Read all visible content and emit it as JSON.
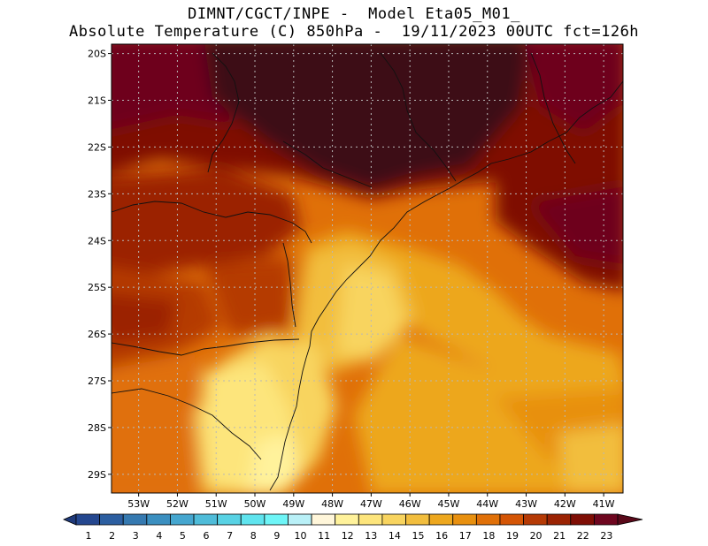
{
  "title": {
    "line1": "DIMNT/CGCT/INPE -  Model Eta05_M01_",
    "line2": "Absolute Temperature (C) 850hPa -  19/11/2023 00UTC fct=126h"
  },
  "map": {
    "lat_labels": [
      "20S",
      "21S",
      "22S",
      "23S",
      "24S",
      "25S",
      "26S",
      "27S",
      "28S",
      "29S"
    ],
    "lon_labels": [
      "53W",
      "52W",
      "51W",
      "50W",
      "49W",
      "48W",
      "47W",
      "46W",
      "45W",
      "44W",
      "43W",
      "42W",
      "41W"
    ],
    "lat_values": [
      -20,
      -21,
      -22,
      -23,
      -24,
      -25,
      -26,
      -27,
      -28,
      -29
    ],
    "lon_values": [
      -53,
      -52,
      -51,
      -50,
      -49,
      -48,
      -47,
      -46,
      -45,
      -44,
      -43,
      -42,
      -41
    ],
    "extent": {
      "west": -53.7,
      "east": -40.5,
      "north": -19.8,
      "south": -29.4
    },
    "gridlines": true,
    "gridline_style": "dotted grey"
  },
  "colorbar": {
    "labels": [
      "1",
      "2",
      "3",
      "4",
      "5",
      "6",
      "7",
      "8",
      "9",
      "10",
      "11",
      "12",
      "13",
      "14",
      "15",
      "16",
      "17",
      "18",
      "19",
      "20",
      "21",
      "22",
      "23"
    ],
    "colors": [
      "#24478f",
      "#2c5ea0",
      "#3579b0",
      "#3b8fc0",
      "#45a6cf",
      "#4fbcd9",
      "#58d2e4",
      "#5fe4ee",
      "#6ef5f7",
      "#b9f0f7",
      "#fff6da",
      "#fff29b",
      "#fde57c",
      "#f8d45f",
      "#f2be3e",
      "#eda71e",
      "#e8900f",
      "#e07008",
      "#d45505",
      "#b53a05",
      "#9b2303",
      "#7f0e05",
      "#6e061f"
    ],
    "arrow_low": "#1f3a7a",
    "arrow_high": "#5a0a1a"
  }
}
